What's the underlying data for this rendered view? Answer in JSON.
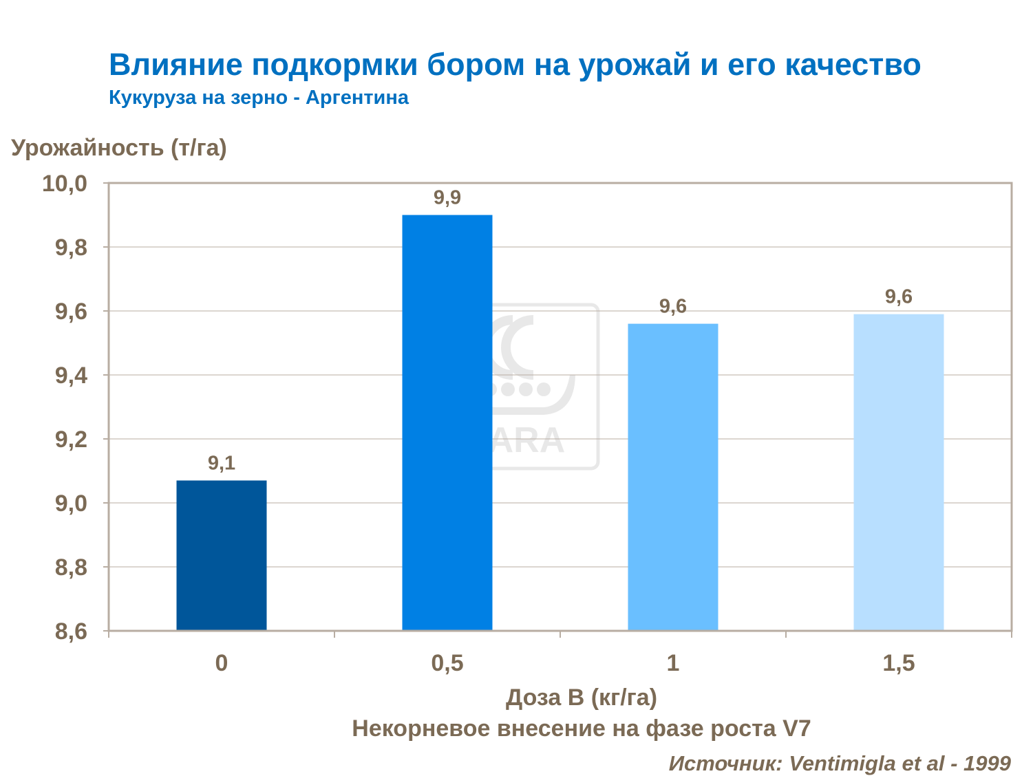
{
  "chart_data": {
    "type": "bar",
    "title": "Влияние подкормки бором на урожай и его качество",
    "subtitle": "Кукуруза на зерно - Аргентина",
    "ylabel": "Урожайность (т/га)",
    "xlabel": "Доза B (кг/га)",
    "note": "Некорневое внесение на фазе роста V7",
    "source": "Источник: Ventimigla et al - 1999",
    "categories": [
      "0",
      "0,5",
      "1",
      "1,5"
    ],
    "values": [
      9.07,
      9.9,
      9.56,
      9.59
    ],
    "data_labels": [
      "9,1",
      "9,9",
      "9,6",
      "9,6"
    ],
    "colors": [
      "#00569A",
      "#0080E4",
      "#6ABFFF",
      "#B8DFFF"
    ],
    "ylim": [
      8.6,
      10.0
    ],
    "yticks": [
      8.6,
      8.8,
      9.0,
      9.2,
      9.4,
      9.6,
      9.8,
      10.0
    ],
    "ytick_labels": [
      "8,6",
      "8,8",
      "9,0",
      "9,2",
      "9,4",
      "9,6",
      "9,8",
      "10,0"
    ],
    "grid": true,
    "legend": "none"
  },
  "watermark": {
    "logo_text": "YARA"
  }
}
